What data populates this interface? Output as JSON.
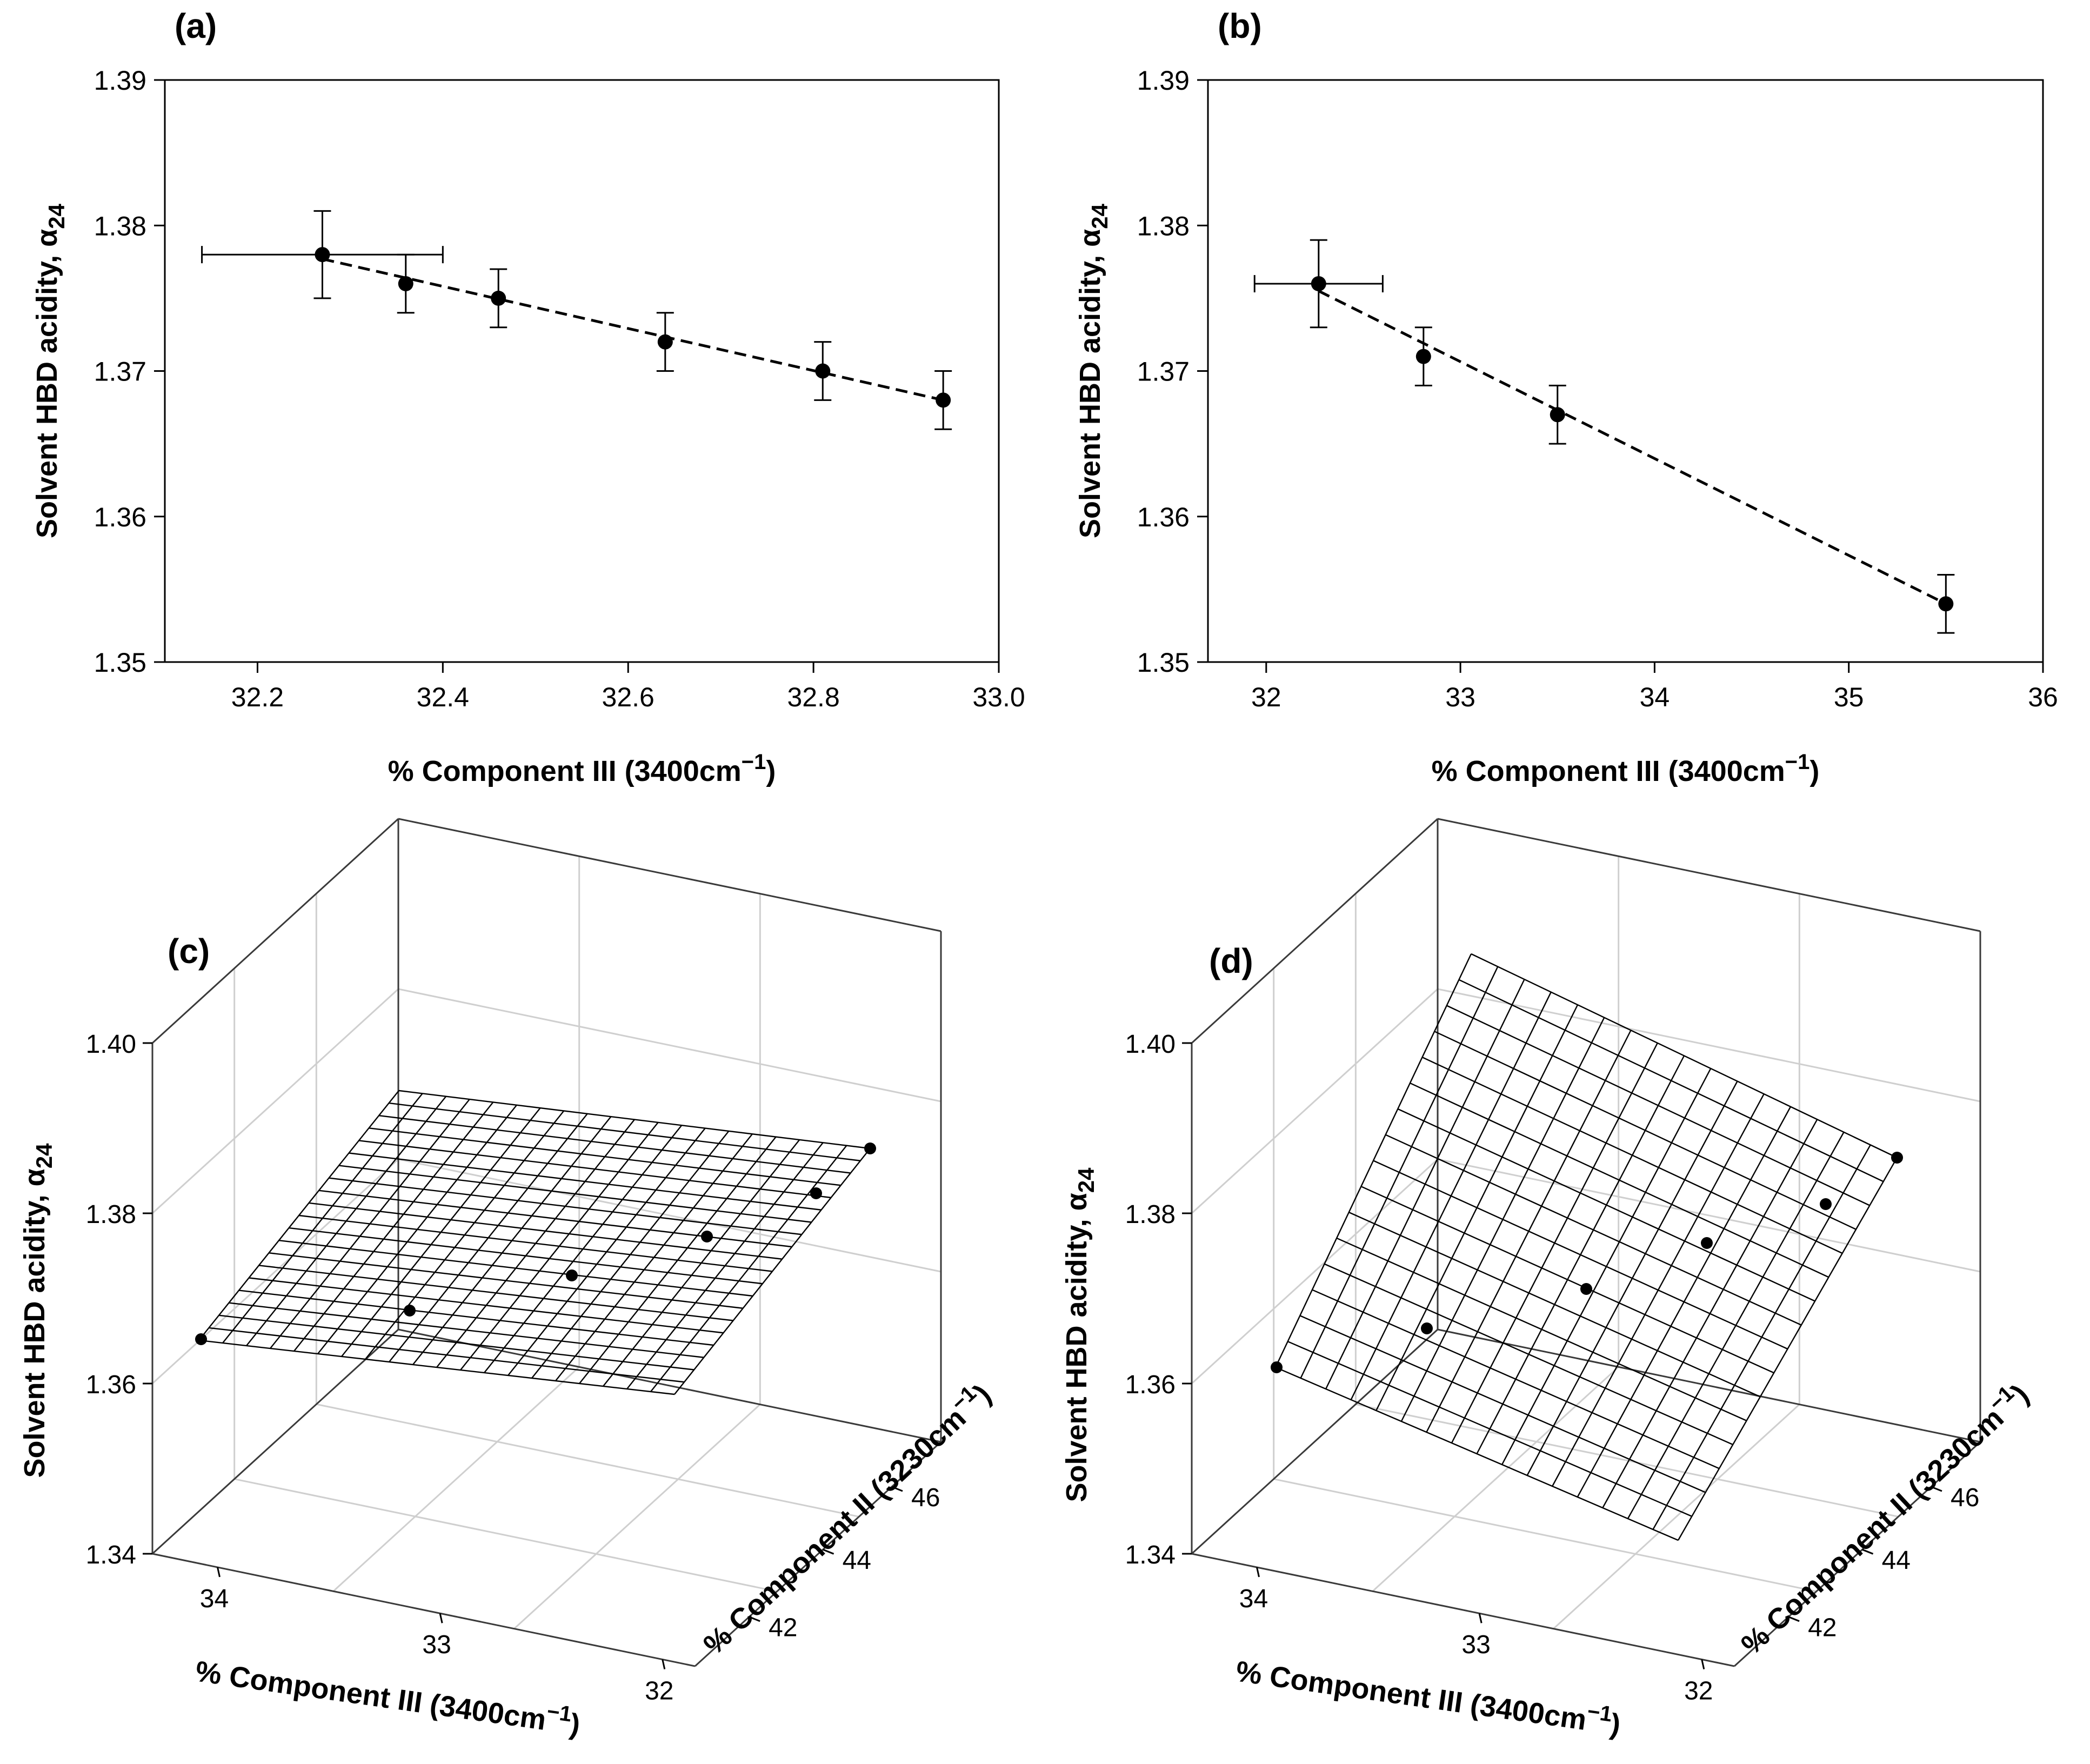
{
  "chart_data": [
    {
      "id": "a",
      "type": "scatter",
      "panel_label": "(a)",
      "xlabel": "% Component III (3400cm",
      "xlabel_sup": "−1",
      "xlabel_close": ")",
      "ylabel": "Solvent HBD acidity, α",
      "ylabel_sub": "24",
      "xlim": [
        32.1,
        33.0
      ],
      "ylim": [
        1.35,
        1.39
      ],
      "xticks": [
        32.2,
        32.4,
        32.6,
        32.8,
        33.0
      ],
      "xtick_labels": [
        "32.2",
        "32.4",
        "32.6",
        "32.8",
        "33.0"
      ],
      "yticks": [
        1.35,
        1.36,
        1.37,
        1.38,
        1.39
      ],
      "ytick_labels": [
        "1.35",
        "1.36",
        "1.37",
        "1.38",
        "1.39"
      ],
      "points": [
        {
          "x": 32.27,
          "y": 1.378,
          "yerr": 0.003,
          "xerr": 0.13
        },
        {
          "x": 32.36,
          "y": 1.376,
          "yerr": 0.002
        },
        {
          "x": 32.46,
          "y": 1.375,
          "yerr": 0.002
        },
        {
          "x": 32.64,
          "y": 1.372,
          "yerr": 0.002
        },
        {
          "x": 32.81,
          "y": 1.37,
          "yerr": 0.002
        },
        {
          "x": 32.94,
          "y": 1.368,
          "yerr": 0.002
        }
      ],
      "fit_line": {
        "style": "dashed",
        "x": [
          32.27,
          32.94
        ],
        "y": [
          1.3777,
          1.368
        ]
      }
    },
    {
      "id": "b",
      "type": "scatter",
      "panel_label": "(b)",
      "xlabel": "% Component III (3400cm",
      "xlabel_sup": "−1",
      "xlabel_close": ")",
      "ylabel": "Solvent HBD acidity, α",
      "ylabel_sub": "24",
      "xlim": [
        31.7,
        36.0
      ],
      "ylim": [
        1.35,
        1.39
      ],
      "xticks": [
        32,
        33,
        34,
        35,
        36
      ],
      "xtick_labels": [
        "32",
        "33",
        "34",
        "35",
        "36"
      ],
      "yticks": [
        1.35,
        1.36,
        1.37,
        1.38,
        1.39
      ],
      "ytick_labels": [
        "1.35",
        "1.36",
        "1.37",
        "1.38",
        "1.39"
      ],
      "points": [
        {
          "x": 32.27,
          "y": 1.376,
          "yerr": 0.003,
          "xerr": 0.33
        },
        {
          "x": 32.81,
          "y": 1.371,
          "yerr": 0.002
        },
        {
          "x": 33.5,
          "y": 1.367,
          "yerr": 0.002
        },
        {
          "x": 35.5,
          "y": 1.354,
          "yerr": 0.002
        }
      ],
      "fit_line": {
        "style": "dashed",
        "x": [
          32.27,
          35.5
        ],
        "y": [
          1.3755,
          1.354
        ]
      }
    },
    {
      "id": "c",
      "type": "surface3d",
      "panel_label": "(c)",
      "zlabel": "Solvent HBD acidity, α",
      "zlabel_sub": "24",
      "xlabel": "% Component III (3400cm",
      "xlabel_sup": "−1",
      "xlabel_close": ")",
      "ylabel": "% Component II (3230cm",
      "ylabel_sup": "−1",
      "ylabel_close": ")",
      "zticks": [
        1.34,
        1.36,
        1.38,
        1.4
      ],
      "ztick_labels": [
        "1.34",
        "1.36",
        "1.38",
        "1.40"
      ],
      "xtick_labels": [
        "34",
        "33",
        "32"
      ],
      "ytick_labels": [
        "42",
        "44",
        "46"
      ],
      "points": [
        {
          "x": 34.5,
          "y": 41.0,
          "z": 1.365
        },
        {
          "x": 33.5,
          "y": 42.0,
          "z": 1.368
        },
        {
          "x": 33.0,
          "y": 43.0,
          "z": 1.372
        },
        {
          "x": 32.8,
          "y": 44.2,
          "z": 1.375
        },
        {
          "x": 32.3,
          "y": 45.0,
          "z": 1.378
        },
        {
          "x": 32.2,
          "y": 46.0,
          "z": 1.38
        }
      ]
    },
    {
      "id": "d",
      "type": "surface3d",
      "panel_label": "(d)",
      "zlabel": "Solvent HBD acidity, α",
      "zlabel_sub": "24",
      "xlabel": "% Component III (3400cm",
      "xlabel_sup": "−1",
      "xlabel_close": ")",
      "ylabel": "% Component II (3230cm",
      "ylabel_sup": "−1",
      "ylabel_close": ")",
      "zticks": [
        1.34,
        1.36,
        1.38,
        1.4
      ],
      "ztick_labels": [
        "1.34",
        "1.36",
        "1.38",
        "1.40"
      ],
      "xtick_labels": [
        "34",
        "33",
        "32"
      ],
      "ytick_labels": [
        "42",
        "44",
        "46"
      ],
      "points": [
        {
          "x": 34.5,
          "y": 41.0,
          "z": 1.362
        },
        {
          "x": 33.5,
          "y": 42.0,
          "z": 1.366
        },
        {
          "x": 33.0,
          "y": 43.0,
          "z": 1.37
        },
        {
          "x": 32.8,
          "y": 44.2,
          "z": 1.375
        },
        {
          "x": 32.3,
          "y": 45.0,
          "z": 1.38
        },
        {
          "x": 32.2,
          "y": 46.0,
          "z": 1.385
        }
      ]
    }
  ]
}
